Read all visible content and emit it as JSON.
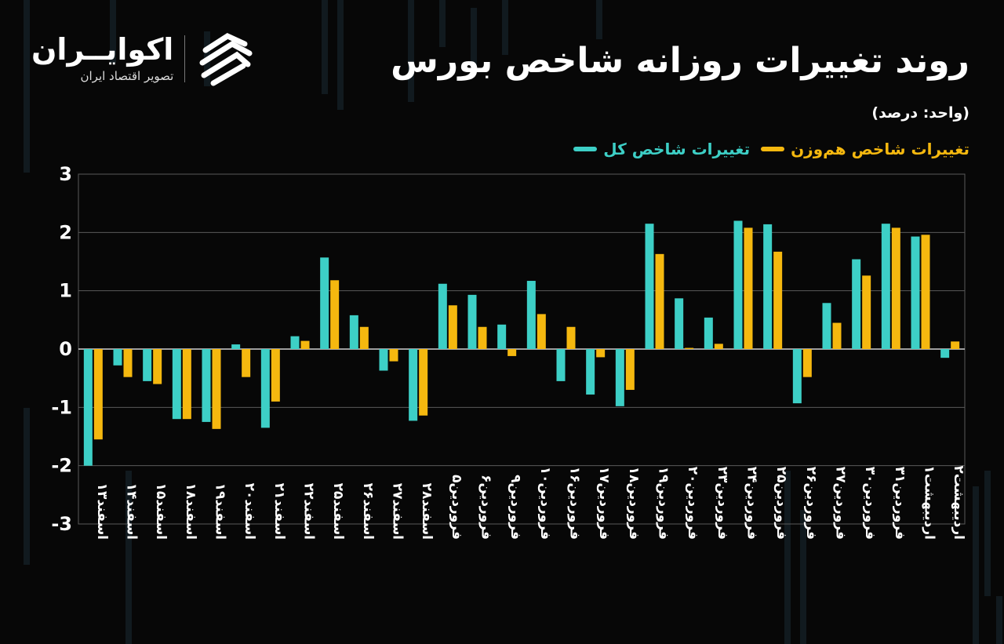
{
  "header": {
    "title": "روند تغییرات روزانه شاخص بورس",
    "unit": "(واحد: درصد)"
  },
  "logo": {
    "name": "اکوایــران",
    "subtitle": "تصویر اقتصاد ایران",
    "icon": "ecoiran-logo-icon"
  },
  "colors": {
    "background": "#070707",
    "series_total": "#3dcfc6",
    "series_equal": "#f5b80f",
    "grid": "#5a5a5a"
  },
  "legend": [
    {
      "label": "تغییرات شاخص کل",
      "color": "#3dcfc6"
    },
    {
      "label": "تغییرات شاخص هم‌وزن",
      "color": "#f5b80f"
    }
  ],
  "chart_data": {
    "type": "bar",
    "categories": [
      "اسفند۱۳",
      "اسفند۱۴",
      "اسفند۱۵",
      "اسفند۱۸",
      "اسفند۱۹",
      "اسفند۲۰",
      "اسفند۲۱",
      "اسفند۲۲",
      "اسفند۲۵",
      "اسفند۲۶",
      "اسفند۲۷",
      "اسفند۲۸",
      "فروردین۵",
      "فروردین۶",
      "فروردین۹",
      "فروردین۱۰",
      "فروردین۱۶",
      "فروردین۱۷",
      "فروردین۱۸",
      "فروردین۱۹",
      "فروردین۲۰",
      "فروردین۲۳",
      "فروردین۲۴",
      "فروردین۲۵",
      "فروردین۲۶",
      "فروردین۲۷",
      "فروردین۳۰",
      "فروردین۳۱",
      "اردیبهشت۱",
      "اردیبهشت۲"
    ],
    "series": [
      {
        "name": "تغییرات شاخص کل",
        "values": [
          -2.0,
          -0.28,
          -0.55,
          -1.2,
          -1.25,
          0.08,
          -1.35,
          0.22,
          1.57,
          0.58,
          -0.37,
          -1.23,
          1.12,
          0.93,
          0.42,
          1.17,
          -0.55,
          -0.78,
          -0.98,
          2.15,
          0.87,
          0.54,
          2.2,
          2.14,
          -0.93,
          0.79,
          1.54,
          2.15,
          1.93,
          -0.15
        ]
      },
      {
        "name": "تغییرات شاخص هم‌وزن",
        "values": [
          -1.55,
          -0.48,
          -0.6,
          -1.2,
          -1.37,
          -0.48,
          -0.9,
          0.14,
          1.18,
          0.38,
          -0.21,
          -1.14,
          0.75,
          0.38,
          -0.12,
          0.6,
          0.38,
          -0.14,
          -0.7,
          1.63,
          0.02,
          0.09,
          2.08,
          1.67,
          -0.48,
          0.45,
          1.26,
          2.08,
          1.96,
          0.13
        ]
      }
    ],
    "ylim": [
      -3,
      3
    ],
    "yticks": [
      "3",
      "2",
      "1",
      "0",
      "-1",
      "-2",
      "-3"
    ],
    "ytick_values": [
      3,
      2,
      1,
      0,
      -1,
      -2,
      -3
    ],
    "grid": true,
    "legend_position": "top-right"
  }
}
